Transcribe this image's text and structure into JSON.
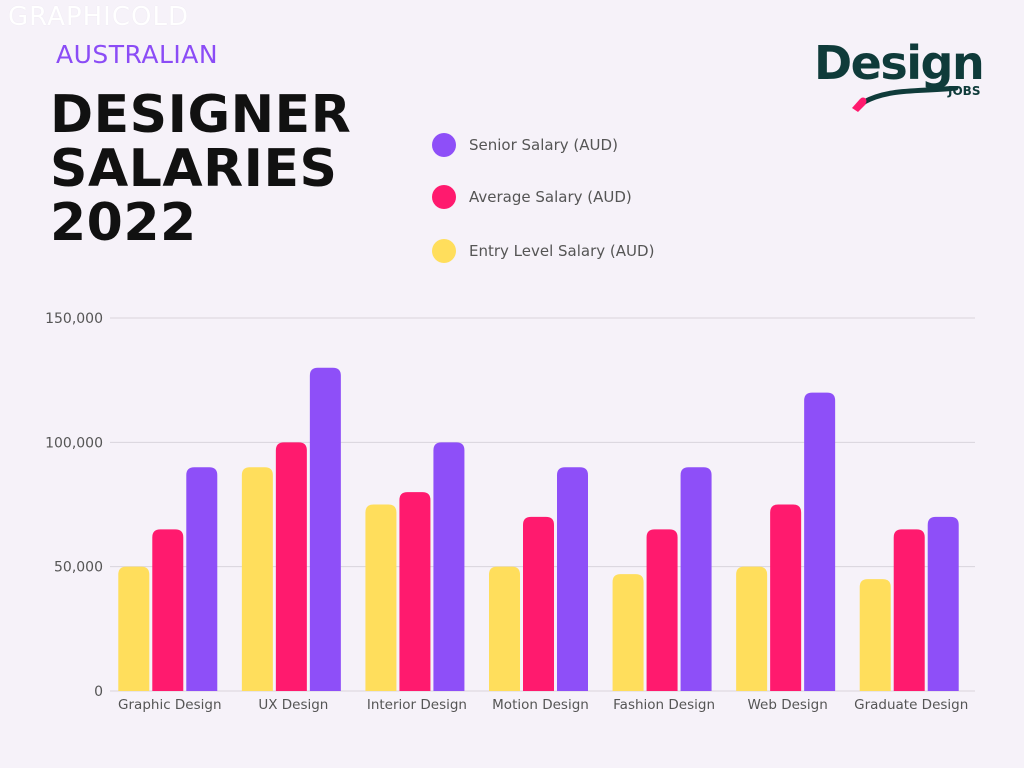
{
  "watermark": "GRAPHICOLD",
  "header": {
    "eyebrow": "AUSTRALIAN",
    "title_lines": [
      "DESIGNER",
      "SALARIES",
      "2022"
    ]
  },
  "logo": {
    "word": "Design",
    "sub": "JOBS"
  },
  "colors": {
    "senior": "#8e4ff8",
    "average": "#ff1a6e",
    "entry": "#ffde5c",
    "grid": "#d9d4dc",
    "axis_text": "#555555",
    "background": "#f6f2f9"
  },
  "legend": [
    {
      "label": "Senior Salary (AUD)",
      "color": "#8e4ff8"
    },
    {
      "label": "Average Salary (AUD)",
      "color": "#ff1a6e"
    },
    {
      "label": "Entry Level Salary (AUD)",
      "color": "#ffde5c"
    }
  ],
  "chart_data": {
    "type": "bar",
    "title": "",
    "xlabel": "",
    "ylabel": "",
    "ylim": [
      0,
      150000
    ],
    "yticks": [
      0,
      50000,
      100000,
      150000
    ],
    "ytick_labels": [
      "0",
      "50,000",
      "100,000",
      "150,000"
    ],
    "grid": true,
    "legend_position": "top",
    "categories": [
      "Graphic Design",
      "UX Design",
      "Interior Design",
      "Motion Design",
      "Fashion Design",
      "Web Design",
      "Graduate Design"
    ],
    "series": [
      {
        "name": "Entry Level Salary (AUD)",
        "color": "#ffde5c",
        "values": [
          50000,
          90000,
          75000,
          50000,
          47000,
          50000,
          45000
        ]
      },
      {
        "name": "Average Salary (AUD)",
        "color": "#ff1a6e",
        "values": [
          65000,
          100000,
          80000,
          70000,
          65000,
          75000,
          65000
        ]
      },
      {
        "name": "Senior Salary (AUD)",
        "color": "#8e4ff8",
        "values": [
          90000,
          130000,
          100000,
          90000,
          90000,
          120000,
          70000
        ]
      }
    ]
  }
}
